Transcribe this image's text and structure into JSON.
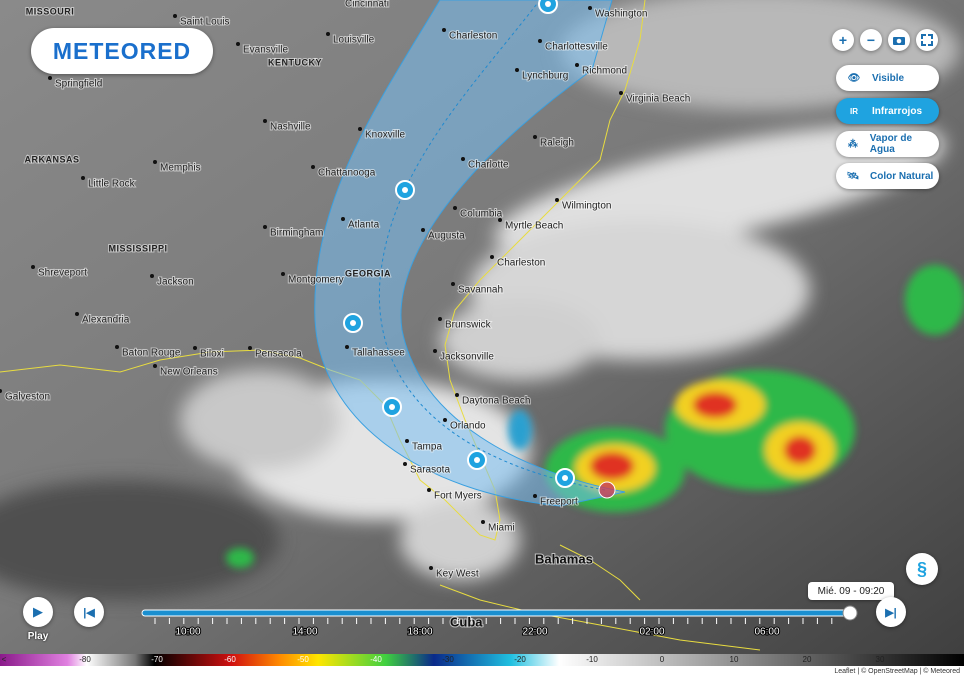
{
  "logo": "METEORED",
  "zoom_controls": [
    "+",
    "−"
  ],
  "layers": [
    "Visible",
    "Infrarrojos",
    "Vapor de Agua",
    "Color Natural"
  ],
  "map": {
    "states": [
      "MISSOURI",
      "KENTUCKY",
      "ARKANSAS",
      "MISSISSIPPI",
      "GEORGIA"
    ],
    "cities": [
      "Saint Louis",
      "Cincinnati",
      "Washington",
      "Evansville",
      "Louisville",
      "Charleston",
      "Charlottesville",
      "Richmond",
      "Springfield",
      "Lynchburg",
      "Virginia Beach",
      "Nashville",
      "Knoxville",
      "Raleigh",
      "Memphis",
      "Charlotte",
      "Chattanooga",
      "Little Rock",
      "Wilmington",
      "Columbia",
      "Birmingham",
      "Atlanta",
      "Augusta",
      "Myrtle Beach",
      "Charleston",
      "Shreveport",
      "Montgomery",
      "Jackson",
      "Savannah",
      "Alexandria",
      "Brunswick",
      "Tallahassee",
      "Jacksonville",
      "Baton Rouge",
      "Biloxi",
      "Pensacola",
      "New Orleans",
      "Galveston",
      "Daytona Beach",
      "Orlando",
      "Tampa",
      "Sarasota",
      "Fort Myers",
      "Freeport",
      "Miami",
      "Key West"
    ],
    "countries": [
      "Bahamas",
      "Cuba"
    ]
  },
  "player": {
    "play": "Play",
    "current_time": "Mié. 09 - 09:20",
    "times": [
      "10:00",
      "14:00",
      "18:00",
      "22:00",
      "02:00",
      "06:00"
    ]
  },
  "colorbar": {
    "labels": [
      "<",
      "-80",
      "-70",
      "-60",
      "-50",
      "-40",
      "-30",
      "-20",
      "-10",
      "0",
      "10",
      "20",
      "30"
    ]
  },
  "attribution": "Leaflet | © OpenStreetMap | © Meteored"
}
